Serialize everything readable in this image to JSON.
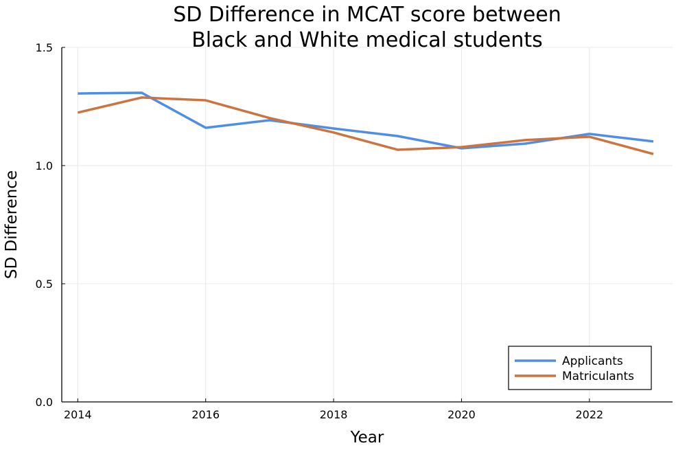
{
  "chart_data": {
    "type": "line",
    "title": [
      "SD Difference in MCAT score between",
      "Black and White medical students"
    ],
    "xlabel": "Year",
    "ylabel": "SD Difference",
    "x": [
      2014,
      2015,
      2016,
      2017,
      2018,
      2019,
      2020,
      2021,
      2022,
      2023
    ],
    "xticks": [
      "2014",
      "2016",
      "2018",
      "2020",
      "2022"
    ],
    "yticks": [
      "0.0",
      "0.5",
      "1.0",
      "1.5"
    ],
    "xlim": [
      2013.75,
      2023.3
    ],
    "ylim": [
      0,
      1.5
    ],
    "grid": true,
    "legend_position": "bottom-right",
    "series": [
      {
        "name": "Applicants",
        "color": "#4f8ee5",
        "values": [
          1.305,
          1.308,
          1.16,
          1.192,
          1.157,
          1.125,
          1.073,
          1.093,
          1.134,
          1.102
        ]
      },
      {
        "name": "Matriculants",
        "color": "#cc7440",
        "values": [
          1.224,
          1.288,
          1.276,
          1.201,
          1.14,
          1.067,
          1.078,
          1.108,
          1.122,
          1.049
        ]
      }
    ]
  }
}
